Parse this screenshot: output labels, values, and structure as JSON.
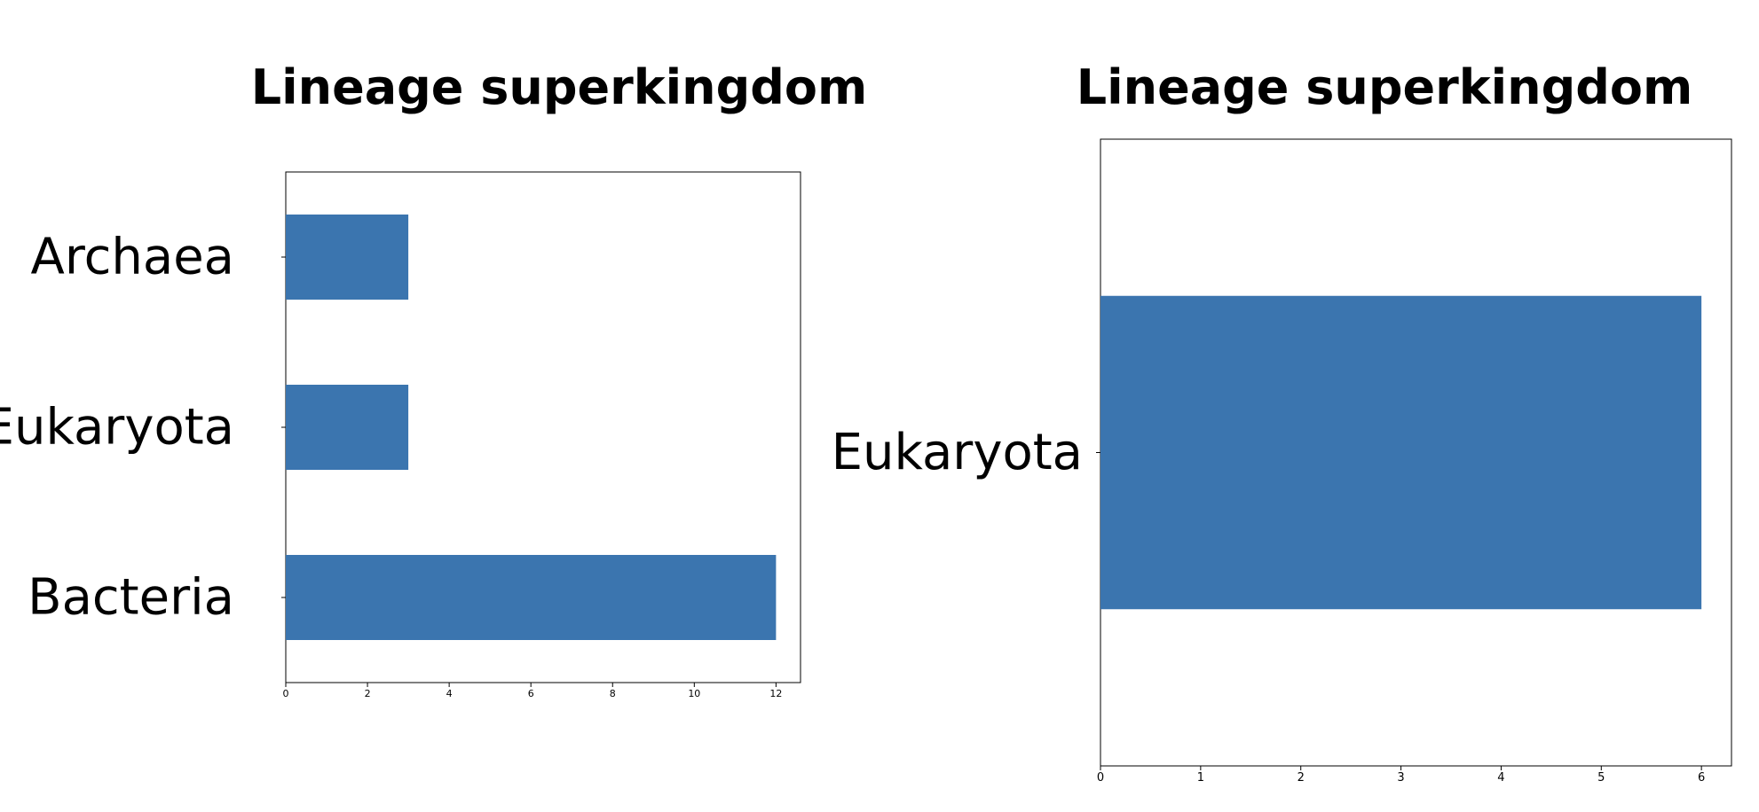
{
  "chart_data": [
    {
      "type": "bar",
      "orientation": "horizontal",
      "title": "Lineage superkingdom",
      "categories": [
        "Archaea",
        "Eukaryota",
        "Bacteria"
      ],
      "values": [
        3,
        3,
        12
      ],
      "xlim": [
        0,
        12.6
      ],
      "xticks": [
        "0",
        "2",
        "4",
        "6",
        "8",
        "10",
        "12"
      ],
      "bar_color": "#3b75af",
      "grid": false,
      "legend": "none"
    },
    {
      "type": "bar",
      "orientation": "horizontal",
      "title": "Lineage superkingdom",
      "categories": [
        "Eukaryota"
      ],
      "values": [
        6
      ],
      "xlim": [
        0,
        6.3
      ],
      "xticks": [
        "0",
        "1",
        "2",
        "3",
        "4",
        "5",
        "6"
      ],
      "bar_color": "#3b75af",
      "grid": false,
      "legend": "none"
    }
  ]
}
